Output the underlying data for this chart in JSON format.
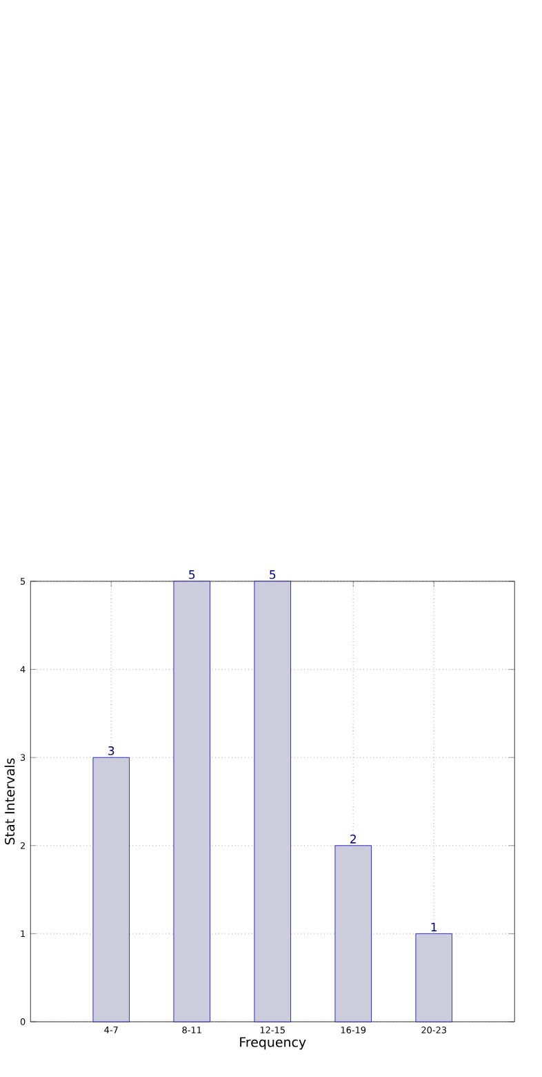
{
  "chart_data": {
    "type": "bar",
    "xlabel": "Frequency",
    "ylabel": "Stat Intervals",
    "categories": [
      "4-7",
      "8-11",
      "12-15",
      "16-19",
      "20-23"
    ],
    "values": [
      3,
      5,
      5,
      2,
      1
    ],
    "color": "#ccccdd",
    "ylim": [
      0,
      5
    ],
    "yticks": [
      0,
      1,
      2,
      3,
      4,
      5
    ],
    "grid": true,
    "data_labels": true
  }
}
